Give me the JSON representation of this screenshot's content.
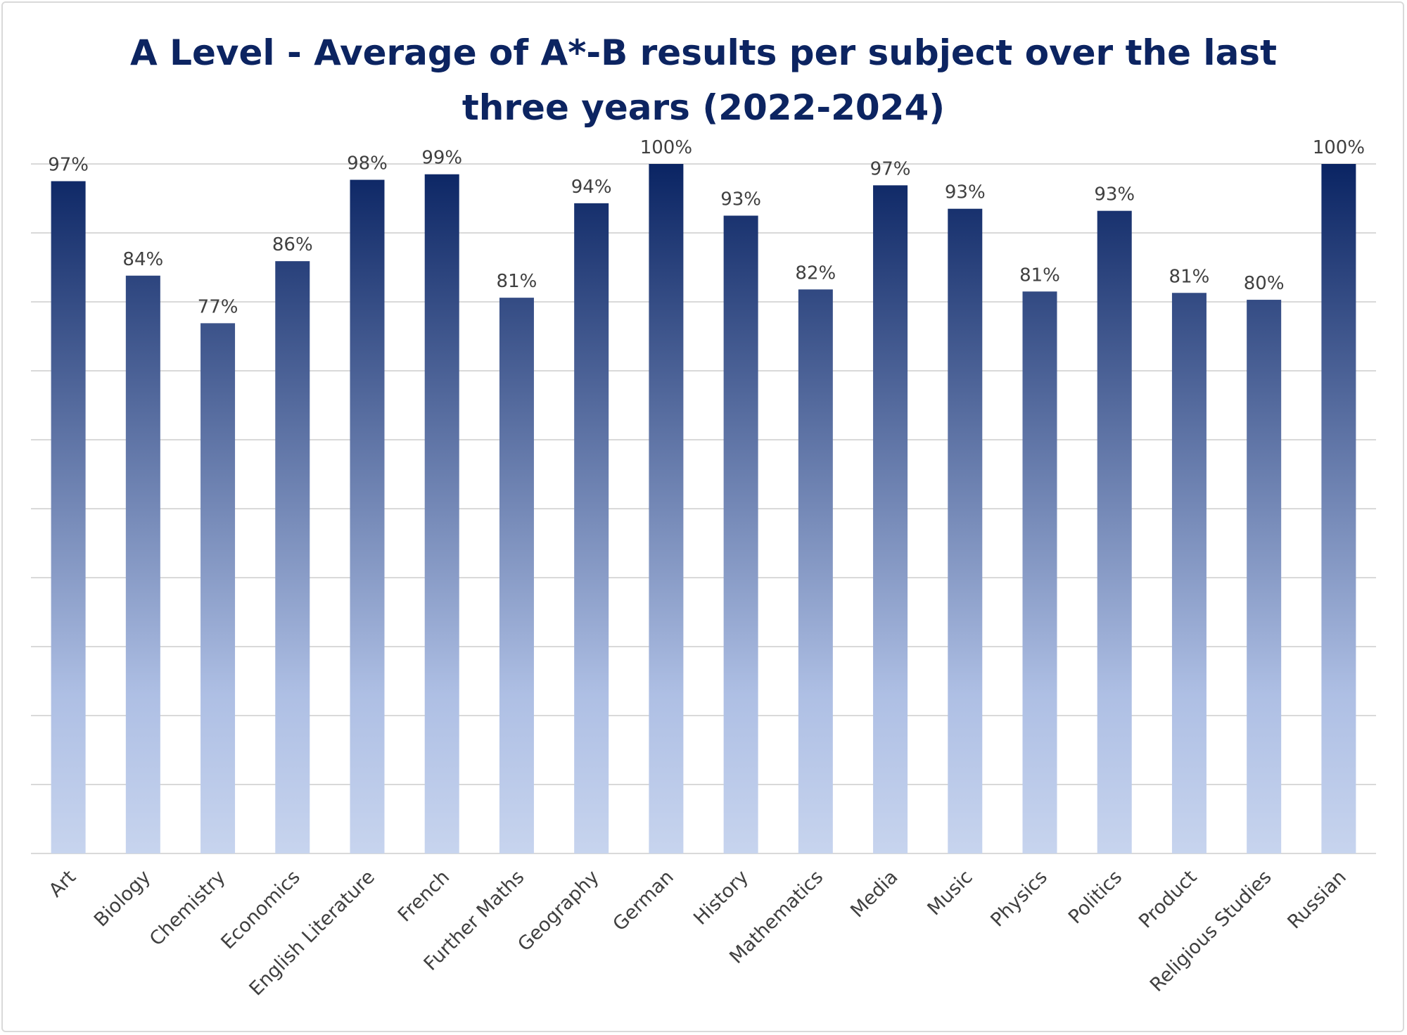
{
  "chart_data": {
    "type": "bar",
    "title": "A Level - Average of A*-B results per subject over the last three years (2022-2024)",
    "xlabel": "",
    "ylabel": "",
    "ylim": [
      0,
      1
    ],
    "grid": true,
    "legend": "none",
    "value_format": "percent",
    "categories": [
      "Art",
      "Biology",
      "Chemistry",
      "Economics",
      "English Literature",
      "French",
      "Further Maths",
      "Geography",
      "German",
      "History",
      "Mathematics",
      "Media",
      "Music",
      "Physics",
      "Politics",
      "Product",
      "Religious Studies",
      "Russian"
    ],
    "values": [
      0.975,
      0.838,
      0.769,
      0.859,
      0.977,
      0.985,
      0.806,
      0.943,
      1.0,
      0.925,
      0.818,
      0.969,
      0.935,
      0.815,
      0.932,
      0.813,
      0.803,
      1.0
    ],
    "data_labels": [
      "97%",
      "84%",
      "77%",
      "86%",
      "98%",
      "99%",
      "81%",
      "94%",
      "100%",
      "93%",
      "82%",
      "97%",
      "93%",
      "81%",
      "93%",
      "81%",
      "80%",
      "100%"
    ],
    "colors": {
      "bar_top": "#0a2463",
      "bar_mid": "#aebfe4",
      "bar_bottom": "#c7d4ee",
      "title": "#0c2461",
      "label": "#404040",
      "grid": "#d9d9d9"
    }
  }
}
